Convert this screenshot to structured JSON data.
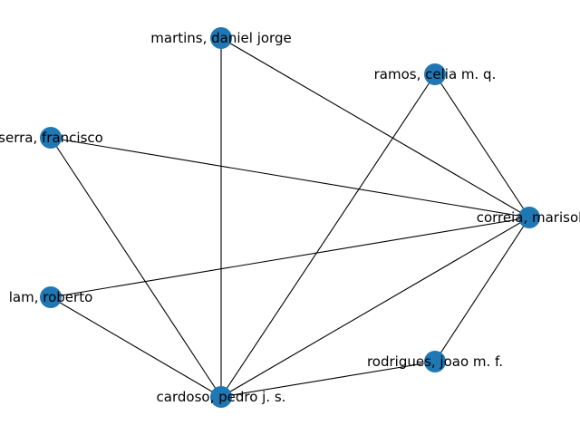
{
  "graph": {
    "node_color": "#1f77b4",
    "edge_color": "#000000",
    "nodes": [
      {
        "id": "martins",
        "label": "martins, daniel jorge"
      },
      {
        "id": "ramos",
        "label": "ramos, celia m. q."
      },
      {
        "id": "serra",
        "label": "serra, francisco"
      },
      {
        "id": "correia",
        "label": "correia, marisol"
      },
      {
        "id": "lam",
        "label": "lam, roberto"
      },
      {
        "id": "rodrigues",
        "label": "rodrigues, joao m. f."
      },
      {
        "id": "cardoso",
        "label": "cardoso, pedro j. s."
      }
    ],
    "edges": [
      [
        "martins",
        "correia"
      ],
      [
        "martins",
        "cardoso"
      ],
      [
        "ramos",
        "correia"
      ],
      [
        "ramos",
        "cardoso"
      ],
      [
        "serra",
        "correia"
      ],
      [
        "serra",
        "cardoso"
      ],
      [
        "correia",
        "lam"
      ],
      [
        "correia",
        "rodrigues"
      ],
      [
        "correia",
        "cardoso"
      ],
      [
        "lam",
        "cardoso"
      ],
      [
        "rodrigues",
        "cardoso"
      ]
    ]
  }
}
